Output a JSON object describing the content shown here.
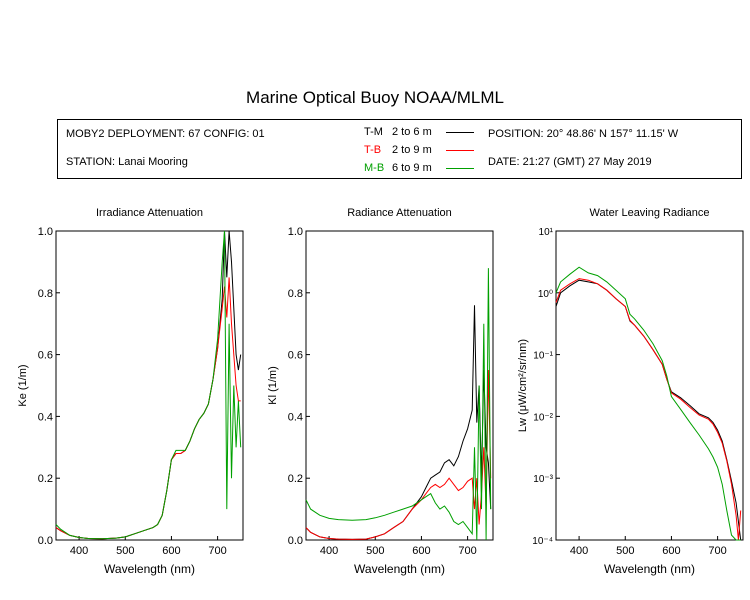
{
  "title": "Marine Optical Buoy NOAA/MLML",
  "info": {
    "deployment": "MOBY2 DEPLOYMENT: 67 CONFIG: 01",
    "station": "STATION: Lanai Mooring",
    "position": "POSITION: 20° 48.86' N   157° 11.15' W",
    "date": "DATE: 21:27 (GMT) 27 May 2019"
  },
  "legend": [
    {
      "code": "T-M",
      "range": "2 to 6  m",
      "color": "#000000"
    },
    {
      "code": "T-B",
      "range": "2 to 9  m",
      "color": "#ff0000"
    },
    {
      "code": "M-B",
      "range": "6 to 9  m",
      "color": "#00a000"
    }
  ],
  "chart_data": [
    {
      "type": "line",
      "title": "Irradiance Attenuation",
      "xlabel": "Wavelength (nm)",
      "ylabel": "Ke  (1/m)",
      "xlim": [
        350,
        755
      ],
      "ylim": [
        0,
        1
      ],
      "xticks": [
        "400",
        "500",
        "600",
        "700"
      ],
      "yticks": [
        "0.0",
        "0.2",
        "0.4",
        "0.6",
        "0.8",
        "1.0"
      ],
      "x": [
        350,
        360,
        380,
        400,
        420,
        450,
        480,
        500,
        520,
        540,
        560,
        570,
        580,
        590,
        600,
        610,
        620,
        630,
        640,
        650,
        660,
        670,
        680,
        690,
        700,
        710,
        715,
        720,
        725,
        730,
        735,
        740,
        745,
        750
      ],
      "series": [
        {
          "name": "T-M",
          "color": "#000000",
          "values": [
            0.04,
            0.03,
            0.015,
            0.008,
            0.005,
            0.004,
            0.006,
            0.01,
            0.02,
            0.03,
            0.04,
            0.05,
            0.08,
            0.16,
            0.26,
            0.28,
            0.28,
            0.29,
            0.32,
            0.36,
            0.39,
            0.41,
            0.44,
            0.52,
            0.62,
            0.78,
            1.0,
            0.85,
            1.0,
            0.9,
            0.75,
            0.6,
            0.55,
            0.6
          ]
        },
        {
          "name": "T-B",
          "color": "#ff0000",
          "values": [
            0.04,
            0.03,
            0.015,
            0.008,
            0.005,
            0.004,
            0.006,
            0.01,
            0.02,
            0.03,
            0.04,
            0.05,
            0.08,
            0.16,
            0.26,
            0.28,
            0.28,
            0.29,
            0.32,
            0.36,
            0.39,
            0.41,
            0.44,
            0.52,
            0.62,
            0.75,
            0.82,
            0.72,
            0.85,
            0.7,
            0.6,
            0.5,
            0.45,
            0.45
          ]
        },
        {
          "name": "M-B",
          "color": "#00a000",
          "values": [
            0.05,
            0.035,
            0.015,
            0.008,
            0.005,
            0.004,
            0.006,
            0.01,
            0.02,
            0.03,
            0.04,
            0.05,
            0.08,
            0.16,
            0.26,
            0.29,
            0.29,
            0.29,
            0.32,
            0.36,
            0.39,
            0.41,
            0.44,
            0.52,
            0.65,
            0.9,
            1.0,
            0.1,
            0.7,
            0.2,
            0.5,
            0.3,
            0.45,
            0.3
          ]
        }
      ]
    },
    {
      "type": "line",
      "title": "Radiance Attenuation",
      "xlabel": "Wavelength (nm)",
      "ylabel": "Kl  (1/m)",
      "xlim": [
        350,
        755
      ],
      "ylim": [
        0,
        1
      ],
      "xticks": [
        "400",
        "500",
        "600",
        "700"
      ],
      "yticks": [
        "0.0",
        "0.2",
        "0.4",
        "0.6",
        "0.8",
        "1.0"
      ],
      "x": [
        350,
        360,
        380,
        400,
        420,
        450,
        480,
        500,
        520,
        540,
        560,
        580,
        600,
        610,
        620,
        630,
        640,
        650,
        660,
        670,
        680,
        690,
        700,
        710,
        715,
        720,
        725,
        730,
        735,
        740,
        745,
        750
      ],
      "series": [
        {
          "name": "T-M",
          "color": "#000000",
          "values": [
            0.04,
            0.025,
            0.01,
            0.005,
            0.003,
            0.002,
            0.003,
            0.01,
            0.02,
            0.04,
            0.06,
            0.1,
            0.14,
            0.17,
            0.2,
            0.21,
            0.22,
            0.25,
            0.26,
            0.24,
            0.27,
            0.32,
            0.36,
            0.42,
            0.76,
            0.38,
            0.5,
            0.2,
            0.55,
            0.3,
            0.25,
            0.1
          ]
        },
        {
          "name": "T-B",
          "color": "#ff0000",
          "values": [
            0.04,
            0.025,
            0.01,
            0.005,
            0.003,
            0.002,
            0.003,
            0.01,
            0.02,
            0.04,
            0.06,
            0.1,
            0.13,
            0.15,
            0.17,
            0.18,
            0.17,
            0.18,
            0.2,
            0.18,
            0.16,
            0.17,
            0.19,
            0.2,
            0.1,
            0.2,
            0.05,
            0.15,
            0.3,
            0.1,
            0.55,
            0.2
          ]
        },
        {
          "name": "M-B",
          "color": "#00a000",
          "values": [
            0.13,
            0.1,
            0.08,
            0.07,
            0.066,
            0.064,
            0.066,
            0.072,
            0.08,
            0.09,
            0.1,
            0.11,
            0.13,
            0.14,
            0.15,
            0.12,
            0.1,
            0.11,
            0.09,
            0.06,
            0.05,
            0.06,
            0.04,
            0.02,
            0.3,
            0.0,
            0.5,
            0.1,
            0.7,
            0.0,
            0.88,
            0.1
          ]
        }
      ]
    },
    {
      "type": "line",
      "title": "Water Leaving Radiance",
      "xlabel": "Wavelength (nm)",
      "ylabel": "Lw  (μW/cm²/sr/nm)",
      "xlim": [
        350,
        755
      ],
      "ylim": [
        0.0001,
        10
      ],
      "yscale": "log",
      "xticks": [
        "400",
        "500",
        "600",
        "700"
      ],
      "yticks": [
        "10⁻⁴",
        "10⁻³",
        "10⁻²",
        "10⁻¹",
        "10⁰",
        "10¹"
      ],
      "x": [
        350,
        360,
        380,
        400,
        420,
        440,
        460,
        480,
        500,
        510,
        520,
        540,
        560,
        580,
        590,
        600,
        620,
        640,
        660,
        680,
        690,
        700,
        710,
        720,
        730,
        740,
        745,
        750
      ],
      "series": [
        {
          "name": "T-M",
          "color": "#000000",
          "values": [
            0.6,
            1.0,
            1.3,
            1.6,
            1.5,
            1.4,
            1.1,
            0.8,
            0.6,
            0.35,
            0.3,
            0.2,
            0.12,
            0.07,
            0.04,
            0.025,
            0.02,
            0.015,
            0.011,
            0.0095,
            0.008,
            0.006,
            0.004,
            0.002,
            0.0009,
            0.0004,
            0.0002,
            0.0001
          ]
        },
        {
          "name": "T-B",
          "color": "#ff0000",
          "values": [
            0.7,
            1.1,
            1.4,
            1.7,
            1.6,
            1.4,
            1.1,
            0.8,
            0.6,
            0.36,
            0.3,
            0.2,
            0.12,
            0.07,
            0.04,
            0.024,
            0.019,
            0.014,
            0.0105,
            0.009,
            0.0075,
            0.0055,
            0.0037,
            0.0019,
            0.0008,
            0.00025,
            0.0001,
            0.0003
          ]
        },
        {
          "name": "M-B",
          "color": "#00a000",
          "values": [
            1.0,
            1.5,
            2.0,
            2.6,
            2.1,
            1.9,
            1.5,
            1.1,
            0.8,
            0.45,
            0.38,
            0.25,
            0.15,
            0.08,
            0.045,
            0.021,
            0.013,
            0.008,
            0.005,
            0.003,
            0.0022,
            0.0015,
            0.0008,
            0.0003,
            0.00012,
            0.0001,
            0.0001,
            0.0001
          ]
        }
      ]
    }
  ]
}
